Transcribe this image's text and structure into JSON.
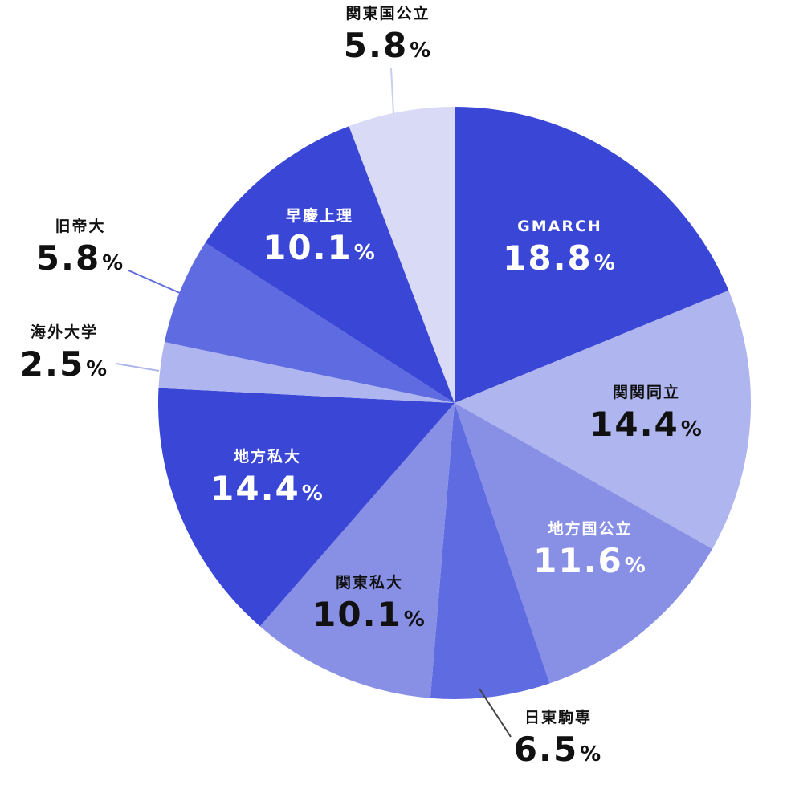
{
  "chart_data": {
    "type": "pie",
    "start": "top",
    "direction": "clockwise",
    "slices": [
      {
        "label": "GMARCH",
        "value": 18.8,
        "display": "18.8",
        "unit": "%",
        "color": "#3a47d6"
      },
      {
        "label": "関関同立",
        "value": 14.4,
        "display": "14.4",
        "unit": "%",
        "color": "#afb5ee"
      },
      {
        "label": "地方国公立",
        "value": 11.6,
        "display": "11.6",
        "unit": "%",
        "color": "#8890e6"
      },
      {
        "label": "日東駒専",
        "value": 6.5,
        "display": "6.5",
        "unit": "%",
        "color": "#5f6be0"
      },
      {
        "label": "関東私大",
        "value": 10.1,
        "display": "10.1",
        "unit": "%",
        "color": "#8890e6"
      },
      {
        "label": "地方私大",
        "value": 14.4,
        "display": "14.4",
        "unit": "%",
        "color": "#3a47d6"
      },
      {
        "label": "海外大学",
        "value": 2.5,
        "display": "2.5",
        "unit": "%",
        "color": "#afb5ee"
      },
      {
        "label": "旧帝大",
        "value": 5.8,
        "display": "5.8",
        "unit": "%",
        "color": "#5f6be0"
      },
      {
        "label": "早慶上理",
        "value": 10.1,
        "display": "10.1",
        "unit": "%",
        "color": "#3a47d6"
      },
      {
        "label": "関東国公立",
        "value": 5.8,
        "display": "5.8",
        "unit": "%",
        "color": "#d9daf6"
      }
    ]
  }
}
